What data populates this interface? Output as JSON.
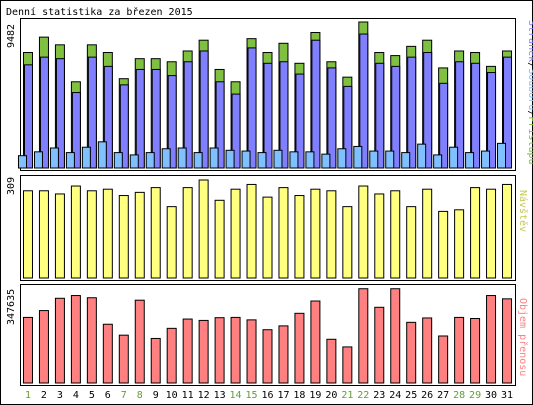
{
  "chart_data": [
    {
      "type": "bar",
      "title": "Denní statistika za březen 2015",
      "ylabel": "Stránek/Souborů/Přístupů",
      "ylabel_parts": [
        "Stránek",
        "/",
        "Souborů",
        "/",
        "Přístupů"
      ],
      "ymax_label": "9482",
      "ylim": [
        0,
        9482
      ],
      "categories": [
        "1",
        "2",
        "3",
        "4",
        "5",
        "6",
        "7",
        "8",
        "9",
        "10",
        "11",
        "12",
        "13",
        "14",
        "15",
        "16",
        "17",
        "18",
        "19",
        "20",
        "21",
        "22",
        "23",
        "24",
        "25",
        "26",
        "27",
        "28",
        "29",
        "30",
        "31"
      ],
      "weekend_days": [
        "1",
        "7",
        "8",
        "14",
        "15",
        "21",
        "22",
        "28",
        "29"
      ],
      "series": [
        {
          "name": "Přístupů",
          "color": "#80c040",
          "values": [
            7500,
            8500,
            8000,
            5600,
            8000,
            7500,
            5800,
            7100,
            7100,
            6900,
            7600,
            8300,
            6400,
            5600,
            8400,
            7500,
            8100,
            6800,
            8800,
            6900,
            5900,
            9482,
            7500,
            7300,
            7900,
            8300,
            6500,
            7600,
            7500,
            6600,
            7600
          ]
        },
        {
          "name": "Souborů",
          "color": "#8080ff",
          "values": [
            6700,
            7200,
            7100,
            4900,
            7200,
            6600,
            5400,
            6400,
            6400,
            6000,
            6900,
            7600,
            5600,
            4800,
            7800,
            6800,
            6900,
            6100,
            8300,
            6500,
            5300,
            8700,
            6800,
            6600,
            7200,
            7500,
            5500,
            6900,
            6800,
            6200,
            7200
          ]
        },
        {
          "name": "Stránek",
          "color": "#80c0ff",
          "values": [
            800,
            1050,
            1300,
            1000,
            1350,
            1700,
            1000,
            850,
            1000,
            1250,
            1300,
            1000,
            1300,
            1150,
            1100,
            1000,
            1150,
            1050,
            1050,
            900,
            1250,
            1400,
            1100,
            1100,
            1000,
            1550,
            850,
            1350,
            1000,
            1100,
            1600
          ]
        }
      ]
    },
    {
      "type": "bar",
      "ylabel": "Návštěv",
      "ymax_label": "309",
      "ylim": [
        0,
        309
      ],
      "categories": [
        "1",
        "2",
        "3",
        "4",
        "5",
        "6",
        "7",
        "8",
        "9",
        "10",
        "11",
        "12",
        "13",
        "14",
        "15",
        "16",
        "17",
        "18",
        "19",
        "20",
        "21",
        "22",
        "23",
        "24",
        "25",
        "26",
        "27",
        "28",
        "29",
        "30",
        "31"
      ],
      "series": [
        {
          "name": "Návštěv",
          "color": "#ffff80",
          "values": [
            275,
            275,
            265,
            290,
            275,
            280,
            260,
            270,
            285,
            225,
            285,
            309,
            245,
            280,
            295,
            255,
            285,
            260,
            280,
            275,
            225,
            290,
            265,
            275,
            225,
            280,
            210,
            215,
            285,
            280,
            295
          ]
        }
      ]
    },
    {
      "type": "bar",
      "ylabel": "Objem přenosu",
      "ymax_label": "347635",
      "ylim": [
        0,
        347635
      ],
      "categories": [
        "1",
        "2",
        "3",
        "4",
        "5",
        "6",
        "7",
        "8",
        "9",
        "10",
        "11",
        "12",
        "13",
        "14",
        "15",
        "16",
        "17",
        "18",
        "19",
        "20",
        "21",
        "22",
        "23",
        "24",
        "25",
        "26",
        "27",
        "28",
        "29",
        "30",
        "31"
      ],
      "series": [
        {
          "name": "Objem přenosu",
          "color": "#ff8080",
          "values": [
            240000,
            265000,
            310000,
            320000,
            312000,
            215000,
            175000,
            303000,
            163000,
            200000,
            234000,
            229000,
            239000,
            240000,
            231000,
            195000,
            209000,
            255000,
            300000,
            160000,
            132000,
            345000,
            277000,
            345000,
            222000,
            238000,
            172000,
            240000,
            236000,
            320000,
            308000
          ]
        }
      ]
    }
  ]
}
